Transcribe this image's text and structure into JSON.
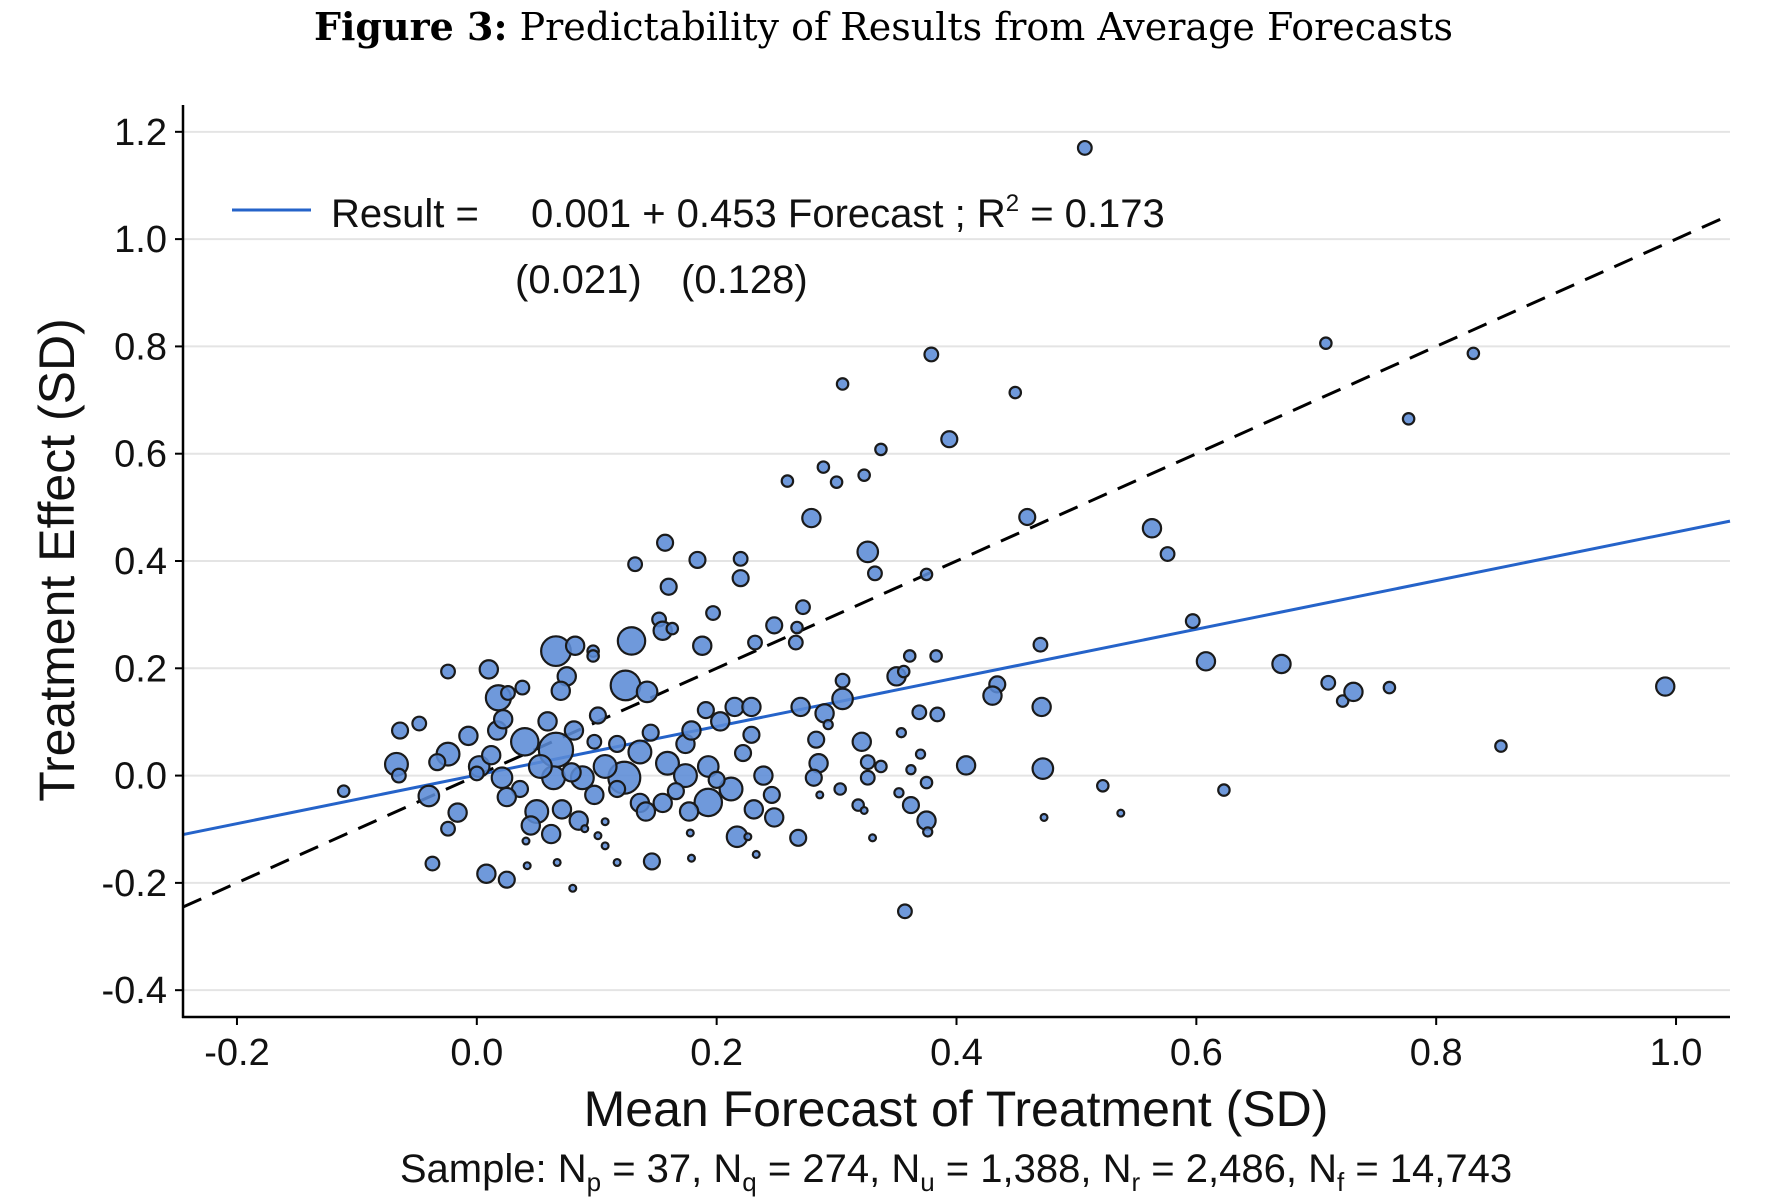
{
  "figure": {
    "label": "Figure 3:",
    "title": "Predictability of Results from Average Forecasts"
  },
  "chart_data": {
    "type": "scatter",
    "xlabel": "Mean Forecast of Treatment (SD)",
    "ylabel": "Treatment Effect (SD)",
    "xlim": [
      -0.245,
      1.045
    ],
    "ylim": [
      -0.45,
      1.25
    ],
    "xticks": [
      "-0.2",
      "0.0",
      "0.2",
      "0.4",
      "0.6",
      "0.8",
      "1.0"
    ],
    "yticks": [
      "-0.4",
      "-0.2",
      "0.0",
      "0.2",
      "0.4",
      "0.6",
      "0.8",
      "1.0",
      "1.2"
    ],
    "grid": "horizontal",
    "marker_color": "#5b8bd6",
    "fit_line": {
      "intercept": 0.001,
      "slope": 0.453,
      "color": "#2563c9",
      "style": "solid"
    },
    "reference_line": {
      "intercept": 0,
      "slope": 1,
      "color": "#000000",
      "style": "dashed"
    },
    "legend": {
      "position": "top-left",
      "result_label": "Result =",
      "equation": "0.001 + 0.453 Forecast ; R",
      "r2_sup": "2",
      "r2_value": " = 0.173",
      "se_intercept": "(0.021)",
      "se_slope": "(0.128)"
    },
    "sample_note": {
      "prefix": "Sample: ",
      "items": [
        {
          "sym": "N",
          "sub": "p",
          "val": " = 37, "
        },
        {
          "sym": "N",
          "sub": "q",
          "val": " = 274, "
        },
        {
          "sym": "N",
          "sub": "u",
          "val": " = 1,388, "
        },
        {
          "sym": "N",
          "sub": "r",
          "val": " = 2,486, "
        },
        {
          "sym": "N",
          "sub": "f",
          "val": " = 14,743"
        }
      ]
    },
    "points": [
      [
        0.507,
        1.17,
        6
      ],
      [
        0.708,
        0.806,
        5
      ],
      [
        0.831,
        0.787,
        5
      ],
      [
        0.379,
        0.785,
        6
      ],
      [
        0.305,
        0.73,
        5
      ],
      [
        0.449,
        0.714,
        5
      ],
      [
        0.777,
        0.665,
        5
      ],
      [
        0.394,
        0.627,
        7
      ],
      [
        0.337,
        0.608,
        5
      ],
      [
        0.289,
        0.575,
        5
      ],
      [
        0.259,
        0.549,
        5
      ],
      [
        0.3,
        0.547,
        5
      ],
      [
        0.323,
        0.56,
        5
      ],
      [
        0.279,
        0.48,
        8
      ],
      [
        0.459,
        0.482,
        7
      ],
      [
        0.563,
        0.461,
        8
      ],
      [
        0.576,
        0.413,
        6
      ],
      [
        0.326,
        0.417,
        9
      ],
      [
        0.157,
        0.434,
        7
      ],
      [
        0.184,
        0.402,
        7
      ],
      [
        0.22,
        0.404,
        6
      ],
      [
        0.132,
        0.394,
        6
      ],
      [
        0.332,
        0.377,
        6
      ],
      [
        0.375,
        0.375,
        5
      ],
      [
        0.16,
        0.352,
        7
      ],
      [
        0.22,
        0.368,
        7
      ],
      [
        0.197,
        0.303,
        6
      ],
      [
        0.272,
        0.314,
        6
      ],
      [
        0.267,
        0.276,
        5
      ],
      [
        0.152,
        0.291,
        6
      ],
      [
        0.155,
        0.27,
        8
      ],
      [
        0.163,
        0.274,
        5
      ],
      [
        0.248,
        0.28,
        7
      ],
      [
        0.266,
        0.248,
        6
      ],
      [
        0.232,
        0.248,
        6
      ],
      [
        0.597,
        0.288,
        6
      ],
      [
        0.47,
        0.244,
        6
      ],
      [
        0.361,
        0.223,
        5
      ],
      [
        0.383,
        0.223,
        5
      ],
      [
        0.129,
        0.251,
        12
      ],
      [
        0.066,
        0.232,
        13
      ],
      [
        0.082,
        0.242,
        8
      ],
      [
        0.097,
        0.232,
        5
      ],
      [
        0.188,
        0.242,
        8
      ],
      [
        0.608,
        0.213,
        8
      ],
      [
        0.671,
        0.208,
        8
      ],
      [
        0.71,
        0.173,
        6
      ],
      [
        0.722,
        0.139,
        5
      ],
      [
        0.731,
        0.156,
        8
      ],
      [
        0.761,
        0.164,
        5
      ],
      [
        0.991,
        0.166,
        8
      ],
      [
        0.854,
        0.055,
        5
      ],
      [
        0.623,
        -0.027,
        5
      ],
      [
        0.522,
        -0.019,
        5
      ],
      [
        0.537,
        -0.07,
        3
      ],
      [
        0.473,
        -0.078,
        3
      ],
      [
        0.357,
        -0.253,
        6
      ],
      [
        0.472,
        0.013,
        9
      ],
      [
        0.471,
        0.128,
        8
      ],
      [
        0.434,
        0.17,
        7
      ],
      [
        0.43,
        0.149,
        8
      ],
      [
        0.408,
        0.019,
        8
      ],
      [
        0.35,
        0.185,
        8
      ],
      [
        0.356,
        0.194,
        5
      ],
      [
        0.305,
        0.177,
        6
      ],
      [
        0.305,
        0.143,
        9
      ],
      [
        0.29,
        0.116,
        8
      ],
      [
        0.369,
        0.118,
        6
      ],
      [
        0.384,
        0.114,
        6
      ],
      [
        0.321,
        0.063,
        8
      ],
      [
        0.283,
        0.067,
        7
      ],
      [
        0.27,
        0.128,
        8
      ],
      [
        0.285,
        0.023,
        8
      ],
      [
        0.281,
        -0.004,
        7
      ],
      [
        0.326,
        0.025,
        6
      ],
      [
        0.337,
        0.017,
        5
      ],
      [
        0.326,
        -0.004,
        6
      ],
      [
        0.303,
        -0.025,
        5
      ],
      [
        0.286,
        -0.036,
        3
      ],
      [
        0.318,
        -0.055,
        5
      ],
      [
        0.323,
        -0.065,
        3
      ],
      [
        0.352,
        -0.032,
        4
      ],
      [
        0.362,
        -0.055,
        7
      ],
      [
        0.375,
        -0.084,
        8
      ],
      [
        0.376,
        -0.105,
        4
      ],
      [
        0.375,
        -0.013,
        5
      ],
      [
        0.37,
        0.04,
        4
      ],
      [
        0.362,
        0.011,
        4
      ],
      [
        0.33,
        -0.116,
        3
      ],
      [
        0.354,
        0.08,
        4
      ],
      [
        0.293,
        0.095,
        4
      ],
      [
        0.268,
        -0.116,
        7
      ],
      [
        0.248,
        -0.078,
        8
      ],
      [
        0.217,
        -0.114,
        9
      ],
      [
        0.233,
        -0.147,
        3
      ],
      [
        0.226,
        -0.114,
        3
      ],
      [
        0.178,
        -0.107,
        3
      ],
      [
        0.179,
        -0.154,
        3
      ],
      [
        0.146,
        -0.16,
        7
      ],
      [
        0.117,
        -0.162,
        3
      ],
      [
        0.107,
        -0.086,
        3
      ],
      [
        0.08,
        -0.21,
        3
      ],
      [
        0.025,
        -0.194,
        7
      ],
      [
        0.008,
        -0.183,
        8
      ],
      [
        -0.037,
        -0.164,
        6
      ],
      [
        -0.024,
        -0.099,
        6
      ],
      [
        -0.016,
        -0.069,
        8
      ],
      [
        -0.04,
        -0.038,
        9
      ],
      [
        -0.067,
        0.021,
        10
      ],
      [
        -0.065,
        0,
        6
      ],
      [
        -0.064,
        0.084,
        7
      ],
      [
        -0.048,
        0.097,
        6
      ],
      [
        -0.111,
        -0.029,
        5
      ],
      [
        -0.024,
        0.194,
        6
      ],
      [
        0.01,
        0.198,
        8
      ],
      [
        0.018,
        0.145,
        11
      ],
      [
        0.038,
        0.164,
        6
      ],
      [
        0.075,
        0.185,
        8
      ],
      [
        0.07,
        0.158,
        8
      ],
      [
        0.101,
        0.112,
        7
      ],
      [
        0.097,
        0.223,
        5
      ],
      [
        0.04,
        0.063,
        12
      ],
      [
        0.066,
        0.048,
        15
      ],
      [
        0.124,
        0.168,
        13
      ],
      [
        0.142,
        0.156,
        9
      ],
      [
        0.193,
        -0.05,
        12
      ],
      [
        0.123,
        -0.004,
        14
      ],
      [
        0.107,
        0.017,
        10
      ],
      [
        0.088,
        -0.004,
        10
      ],
      [
        0.05,
        -0.067,
        10
      ],
      [
        0.064,
        -0.004,
        10
      ],
      [
        0.021,
        -0.004,
        9
      ],
      [
        0.002,
        0.017,
        9
      ],
      [
        -0.007,
        0.074,
        8
      ],
      [
        -0.024,
        0.04,
        10
      ],
      [
        -0.033,
        0.025,
        7
      ],
      [
        0.017,
        0.084,
        8
      ],
      [
        0.022,
        0.105,
        8
      ],
      [
        0.059,
        0.101,
        8
      ],
      [
        0.081,
        0.084,
        8
      ],
      [
        0.098,
        0.063,
        6
      ],
      [
        0.117,
        0.059,
        7
      ],
      [
        0.136,
        0.044,
        10
      ],
      [
        0.145,
        0.08,
        7
      ],
      [
        0.159,
        0.023,
        10
      ],
      [
        0.174,
        0,
        10
      ],
      [
        0.193,
        0.017,
        9
      ],
      [
        0.174,
        0.059,
        8
      ],
      [
        0.179,
        0.084,
        8
      ],
      [
        0.191,
        0.122,
        7
      ],
      [
        0.203,
        0.101,
        8
      ],
      [
        0.215,
        0.128,
        8
      ],
      [
        0.229,
        0.128,
        8
      ],
      [
        0.229,
        0.076,
        7
      ],
      [
        0.222,
        0.042,
        7
      ],
      [
        0.239,
        0,
        8
      ],
      [
        0.246,
        -0.036,
        7
      ],
      [
        0.231,
        -0.063,
        8
      ],
      [
        0.212,
        -0.025,
        10
      ],
      [
        0.2,
        -0.008,
        7
      ],
      [
        0.166,
        -0.029,
        7
      ],
      [
        0.177,
        -0.067,
        8
      ],
      [
        0.155,
        -0.051,
        8
      ],
      [
        0.136,
        -0.051,
        8
      ],
      [
        0.141,
        -0.067,
        8
      ],
      [
        0.117,
        -0.025,
        7
      ],
      [
        0.098,
        -0.036,
        8
      ],
      [
        0.071,
        -0.063,
        8
      ],
      [
        0.062,
        -0.109,
        8
      ],
      [
        0.085,
        -0.084,
        8
      ],
      [
        0.045,
        -0.093,
        8
      ],
      [
        0.036,
        -0.025,
        7
      ],
      [
        0.025,
        -0.04,
        8
      ],
      [
        0.012,
        0.038,
        8
      ],
      [
        0.053,
        0.017,
        10
      ],
      [
        0.079,
        0.006,
        8
      ],
      [
        0.026,
        0.154,
        6
      ],
      [
        0,
        0.004,
        6
      ],
      [
        0.067,
        -0.162,
        3
      ],
      [
        0.042,
        -0.168,
        3
      ],
      [
        0.041,
        -0.122,
        3
      ],
      [
        0.101,
        -0.112,
        3
      ],
      [
        0.09,
        -0.099,
        3
      ],
      [
        0.107,
        -0.131,
        3
      ]
    ]
  }
}
